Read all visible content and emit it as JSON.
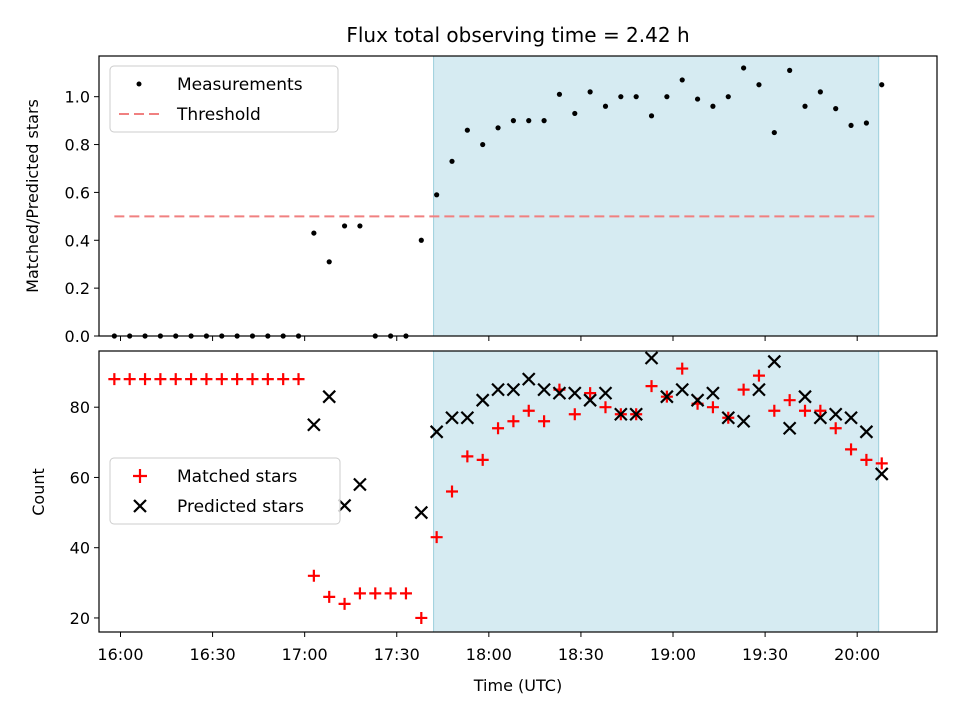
{
  "chart_data": [
    {
      "type": "scatter",
      "title": "Flux total observing time = 2.42 h",
      "xlabel": "",
      "ylabel": "Matched/Predicted stars",
      "xlim": [
        "15:53",
        "20:26"
      ],
      "ylim": [
        0,
        1.17
      ],
      "yticks": [
        "0.0",
        "0.2",
        "0.4",
        "0.6",
        "0.8",
        "1.0"
      ],
      "legend_position": "upper-left",
      "shaded_region": {
        "x_start": "17:42",
        "x_end": "20:07",
        "color": "#add8e6"
      },
      "series": [
        {
          "name": "Measurements",
          "marker": "dot",
          "color": "#000000",
          "x": [
            "15:58",
            "16:03",
            "16:08",
            "16:13",
            "16:18",
            "16:23",
            "16:28",
            "16:33",
            "16:38",
            "16:43",
            "16:48",
            "16:53",
            "16:58",
            "17:03",
            "17:08",
            "17:13",
            "17:18",
            "17:23",
            "17:28",
            "17:33",
            "17:38",
            "17:43",
            "17:48",
            "17:53",
            "17:58",
            "18:03",
            "18:08",
            "18:13",
            "18:18",
            "18:23",
            "18:28",
            "18:33",
            "18:38",
            "18:43",
            "18:48",
            "18:53",
            "18:58",
            "19:03",
            "19:08",
            "19:13",
            "19:18",
            "19:23",
            "19:28",
            "19:33",
            "19:38",
            "19:43",
            "19:48",
            "19:53",
            "19:58",
            "20:03",
            "20:08"
          ],
          "y": [
            0,
            0,
            0,
            0,
            0,
            0,
            0,
            0,
            0,
            0,
            0,
            0,
            0,
            0.43,
            0.31,
            0.46,
            0.46,
            0,
            0,
            0,
            0.4,
            0.59,
            0.73,
            0.86,
            0.8,
            0.87,
            0.9,
            0.9,
            0.9,
            1.01,
            0.93,
            1.02,
            0.96,
            1.0,
            1.0,
            0.92,
            1.0,
            1.07,
            0.99,
            0.96,
            1.0,
            1.12,
            1.05,
            0.85,
            1.11,
            0.96,
            1.02,
            0.95,
            0.88,
            0.89,
            1.05
          ]
        },
        {
          "name": "Threshold",
          "marker": "dashed-line",
          "color": "#f08080",
          "x": [
            "15:58",
            "20:06"
          ],
          "y": [
            0.5,
            0.5
          ]
        }
      ]
    },
    {
      "type": "scatter",
      "xlabel": "Time (UTC)",
      "ylabel": "Count",
      "xlim": [
        "15:53",
        "20:26"
      ],
      "ylim": [
        16,
        96
      ],
      "yticks": [
        "20",
        "40",
        "60",
        "80"
      ],
      "xticks": [
        "16:00",
        "16:30",
        "17:00",
        "17:30",
        "18:00",
        "18:30",
        "19:00",
        "19:30",
        "20:00"
      ],
      "legend_position": "center-left",
      "shaded_region": {
        "x_start": "17:42",
        "x_end": "20:07",
        "color": "#add8e6"
      },
      "series": [
        {
          "name": "Matched stars",
          "marker": "plus",
          "color": "#ff0000",
          "x": [
            "15:58",
            "16:03",
            "16:08",
            "16:13",
            "16:18",
            "16:23",
            "16:28",
            "16:33",
            "16:38",
            "16:43",
            "16:48",
            "16:53",
            "16:58",
            "17:03",
            "17:08",
            "17:13",
            "17:18",
            "17:23",
            "17:28",
            "17:33",
            "17:38",
            "17:43",
            "17:48",
            "17:53",
            "17:58",
            "18:03",
            "18:08",
            "18:13",
            "18:18",
            "18:23",
            "18:28",
            "18:33",
            "18:38",
            "18:43",
            "18:48",
            "18:53",
            "18:58",
            "19:03",
            "19:08",
            "19:13",
            "19:18",
            "19:23",
            "19:28",
            "19:33",
            "19:38",
            "19:43",
            "19:48",
            "19:53",
            "19:58",
            "20:03",
            "20:08"
          ],
          "y": [
            88,
            88,
            88,
            88,
            88,
            88,
            88,
            88,
            88,
            88,
            88,
            88,
            88,
            32,
            26,
            24,
            27,
            27,
            27,
            27,
            20,
            43,
            56,
            66,
            65,
            74,
            76,
            79,
            76,
            85,
            78,
            84,
            80,
            78,
            78,
            86,
            83,
            91,
            81,
            80,
            77,
            85,
            89,
            79,
            82,
            79,
            79,
            74,
            68,
            65,
            64
          ]
        },
        {
          "name": "Predicted stars",
          "marker": "x",
          "color": "#000000",
          "x": [
            "17:03",
            "17:08",
            "17:13",
            "17:18",
            "17:38",
            "17:43",
            "17:48",
            "17:53",
            "17:58",
            "18:03",
            "18:08",
            "18:13",
            "18:18",
            "18:23",
            "18:28",
            "18:33",
            "18:38",
            "18:43",
            "18:48",
            "18:53",
            "18:58",
            "19:03",
            "19:08",
            "19:13",
            "19:18",
            "19:23",
            "19:28",
            "19:33",
            "19:38",
            "19:43",
            "19:48",
            "19:53",
            "19:58",
            "20:03",
            "20:08"
          ],
          "y": [
            75,
            83,
            52,
            58,
            50,
            73,
            77,
            77,
            82,
            85,
            85,
            88,
            85,
            84,
            84,
            82,
            84,
            78,
            78,
            94,
            83,
            85,
            82,
            84,
            77,
            76,
            85,
            93,
            74,
            83,
            77,
            78,
            77,
            73,
            61
          ]
        }
      ]
    }
  ]
}
